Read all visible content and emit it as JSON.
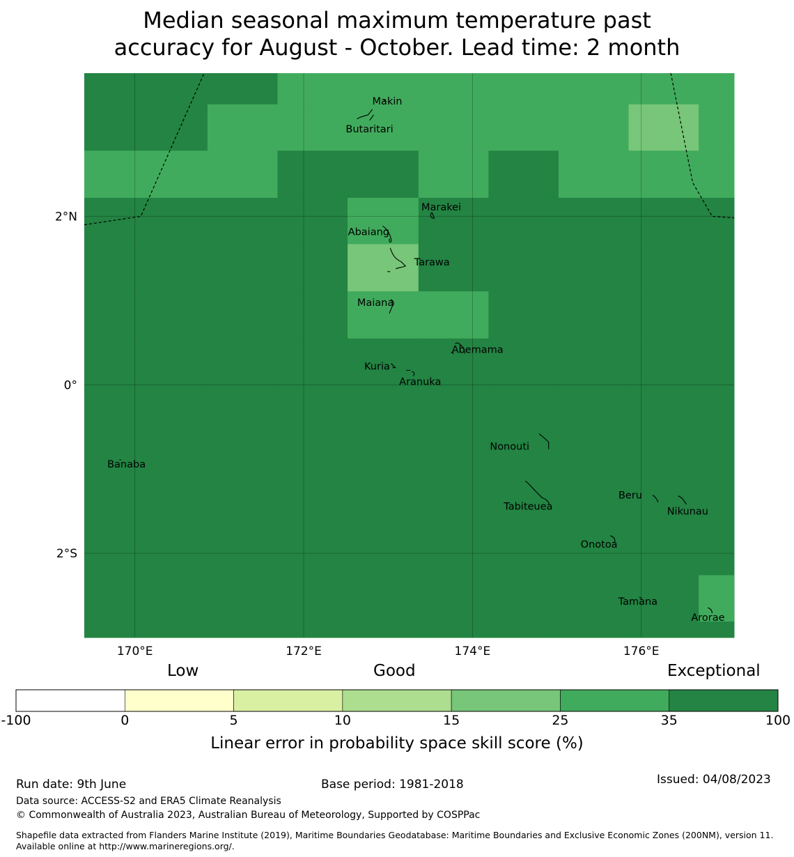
{
  "title_line1": "Median seasonal maximum temperature past",
  "title_line2": "accuracy for August - October. Lead time: 2 month",
  "map": {
    "lon_range": [
      169.4,
      177.1
    ],
    "lat_range": [
      -3.0,
      3.7
    ],
    "lon_ticks": [
      {
        "value": 170,
        "label": "170°E"
      },
      {
        "value": 172,
        "label": "172°E"
      },
      {
        "value": 174,
        "label": "174°E"
      },
      {
        "value": 176,
        "label": "176°E"
      }
    ],
    "lat_ticks": [
      {
        "value": 2,
        "label": "2°N"
      },
      {
        "value": 0,
        "label": "0°"
      },
      {
        "value": -2,
        "label": "2°S"
      }
    ],
    "grid_lon_edges": [
      169.4,
      170.86,
      171.69,
      172.52,
      173.36,
      174.19,
      175.02,
      175.85,
      176.68,
      177.1
    ],
    "grid_lat_edges": [
      3.7,
      3.33,
      2.78,
      2.22,
      1.67,
      1.11,
      0.55,
      -3.0
    ],
    "grid_classes": [
      [
        6,
        6,
        5,
        5,
        5,
        5,
        5,
        5,
        5
      ],
      [
        6,
        5,
        5,
        5,
        5,
        5,
        5,
        4,
        5
      ],
      [
        5,
        5,
        6,
        6,
        5,
        6,
        5,
        5,
        5
      ],
      [
        6,
        6,
        6,
        5,
        6,
        6,
        6,
        6,
        6
      ],
      [
        6,
        6,
        6,
        4,
        6,
        6,
        6,
        6,
        6
      ],
      [
        6,
        6,
        6,
        5,
        5,
        6,
        6,
        6,
        6
      ],
      [
        6,
        6,
        6,
        6,
        6,
        6,
        6,
        6,
        6
      ]
    ],
    "extra_cells": [
      {
        "lon": [
          176.68,
          177.1
        ],
        "lat": [
          -2.81,
          -2.26
        ],
        "class": 5
      }
    ],
    "islands": [
      {
        "name": "Makin",
        "lon": 172.99,
        "lat": 3.37
      },
      {
        "name": "Butaritari",
        "lon": 172.78,
        "lat": 3.04
      },
      {
        "name": "Marakei",
        "lon": 173.63,
        "lat": 2.11
      },
      {
        "name": "Abaiang",
        "lon": 172.77,
        "lat": 1.82
      },
      {
        "name": "Tarawa",
        "lon": 173.52,
        "lat": 1.46
      },
      {
        "name": "Maiana",
        "lon": 172.85,
        "lat": 0.98
      },
      {
        "name": "Abemama",
        "lon": 174.06,
        "lat": 0.42
      },
      {
        "name": "Kuria",
        "lon": 172.87,
        "lat": 0.22
      },
      {
        "name": "Aranuka",
        "lon": 173.38,
        "lat": 0.04
      },
      {
        "name": "Nonouti",
        "lon": 174.44,
        "lat": -0.73
      },
      {
        "name": "Banaba",
        "lon": 169.9,
        "lat": -0.94
      },
      {
        "name": "Beru",
        "lon": 175.87,
        "lat": -1.31
      },
      {
        "name": "Tabiteuea",
        "lon": 174.66,
        "lat": -1.44
      },
      {
        "name": "Nikunau",
        "lon": 176.55,
        "lat": -1.5
      },
      {
        "name": "Onotoa",
        "lon": 175.5,
        "lat": -1.89
      },
      {
        "name": "Tamana",
        "lon": 175.96,
        "lat": -2.57
      },
      {
        "name": "Arorae",
        "lon": 176.79,
        "lat": -2.76
      }
    ],
    "boundary_lines": [
      [
        [
          169.4,
          1.9
        ],
        [
          170.07,
          2.0
        ],
        [
          170.82,
          3.7
        ]
      ],
      [
        [
          176.35,
          3.7
        ],
        [
          176.61,
          2.4
        ],
        [
          176.84,
          2.0
        ],
        [
          177.1,
          1.98
        ]
      ]
    ]
  },
  "colorbar": {
    "labels": {
      "low": "Low",
      "good": "Good",
      "exceptional": "Exceptional"
    },
    "ticks": [
      "-100",
      "0",
      "5",
      "10",
      "15",
      "25",
      "35",
      "100"
    ],
    "colors": [
      "#ffffff",
      "#ffffcc",
      "#d9f0a3",
      "#addd8e",
      "#78c679",
      "#41ab5d",
      "#238443"
    ],
    "title": "Linear error in probability space skill score (%)"
  },
  "footer": {
    "run_date": "Run date: 9th June",
    "base_period": "Base period: 1981-2018",
    "issued": "Issued: 04/08/2023",
    "data_source": "Data source: ACCESS-S2 and ERA5 Climate Reanalysis",
    "copyright": "© Commonwealth of Australia 2023, Australian Bureau of Meteorology, Supported by COSPPac",
    "shapefile": "Shapefile data extracted from Flanders Marine Institute (2019), Maritime Boundaries Geodatabase: Maritime Boundaries and Exclusive Economic Zones (200NM), version 11. Available online at http://www.marineregions.org/."
  }
}
